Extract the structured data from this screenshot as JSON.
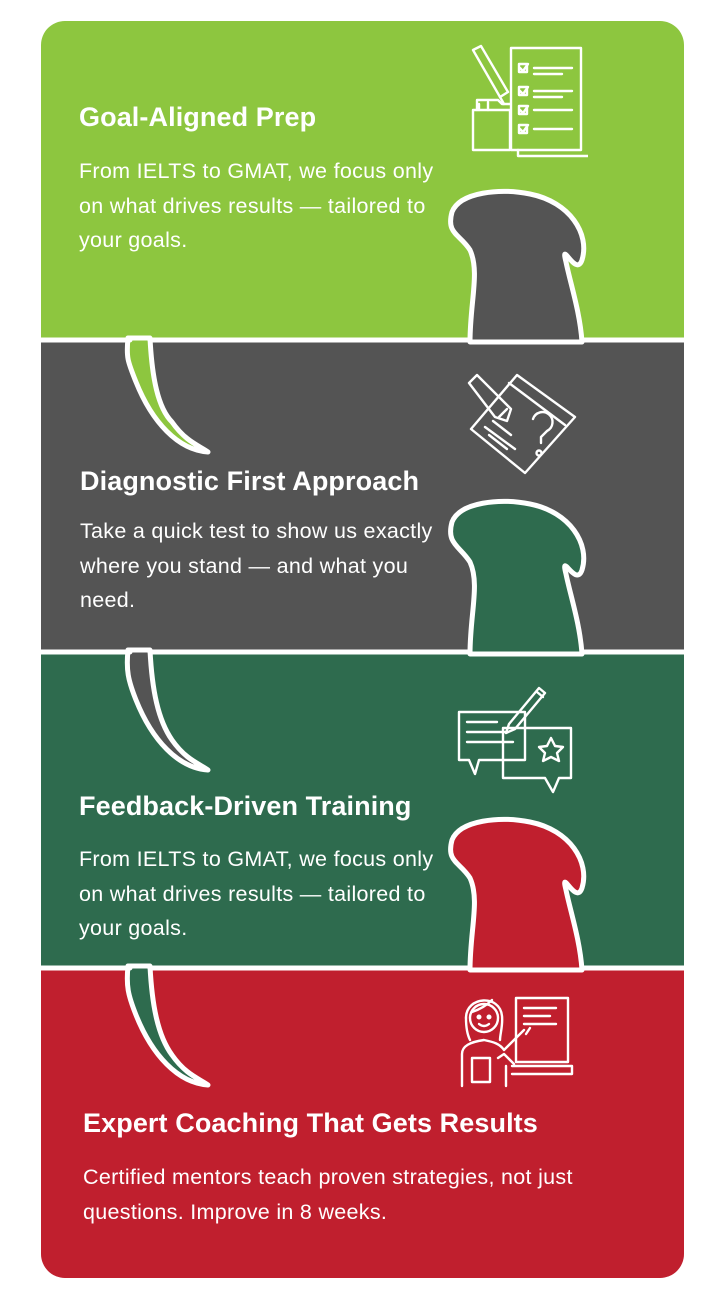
{
  "panels": [
    {
      "title": "Goal-Aligned Prep",
      "body": "From IELTS to GMAT, we focus only on what drives results — tailored to your goals.",
      "color": "#8dc63f",
      "icon": "checklist-icon"
    },
    {
      "title": "Diagnostic First Approach",
      "body": "Take a quick test to show us exactly where you stand — and what you need.",
      "color": "#545454",
      "icon": "question-document-icon"
    },
    {
      "title": "Feedback-Driven Training",
      "body": "From IELTS to GMAT, we focus only on what drives results — tailored to your goals.",
      "color": "#2e6b4e",
      "icon": "feedback-chat-icon"
    },
    {
      "title": "Expert Coaching That Gets Results",
      "body": "Certified mentors teach proven strategies, not just questions. Improve in 8 weeks.",
      "color": "#c01f2e",
      "icon": "teacher-icon"
    }
  ]
}
